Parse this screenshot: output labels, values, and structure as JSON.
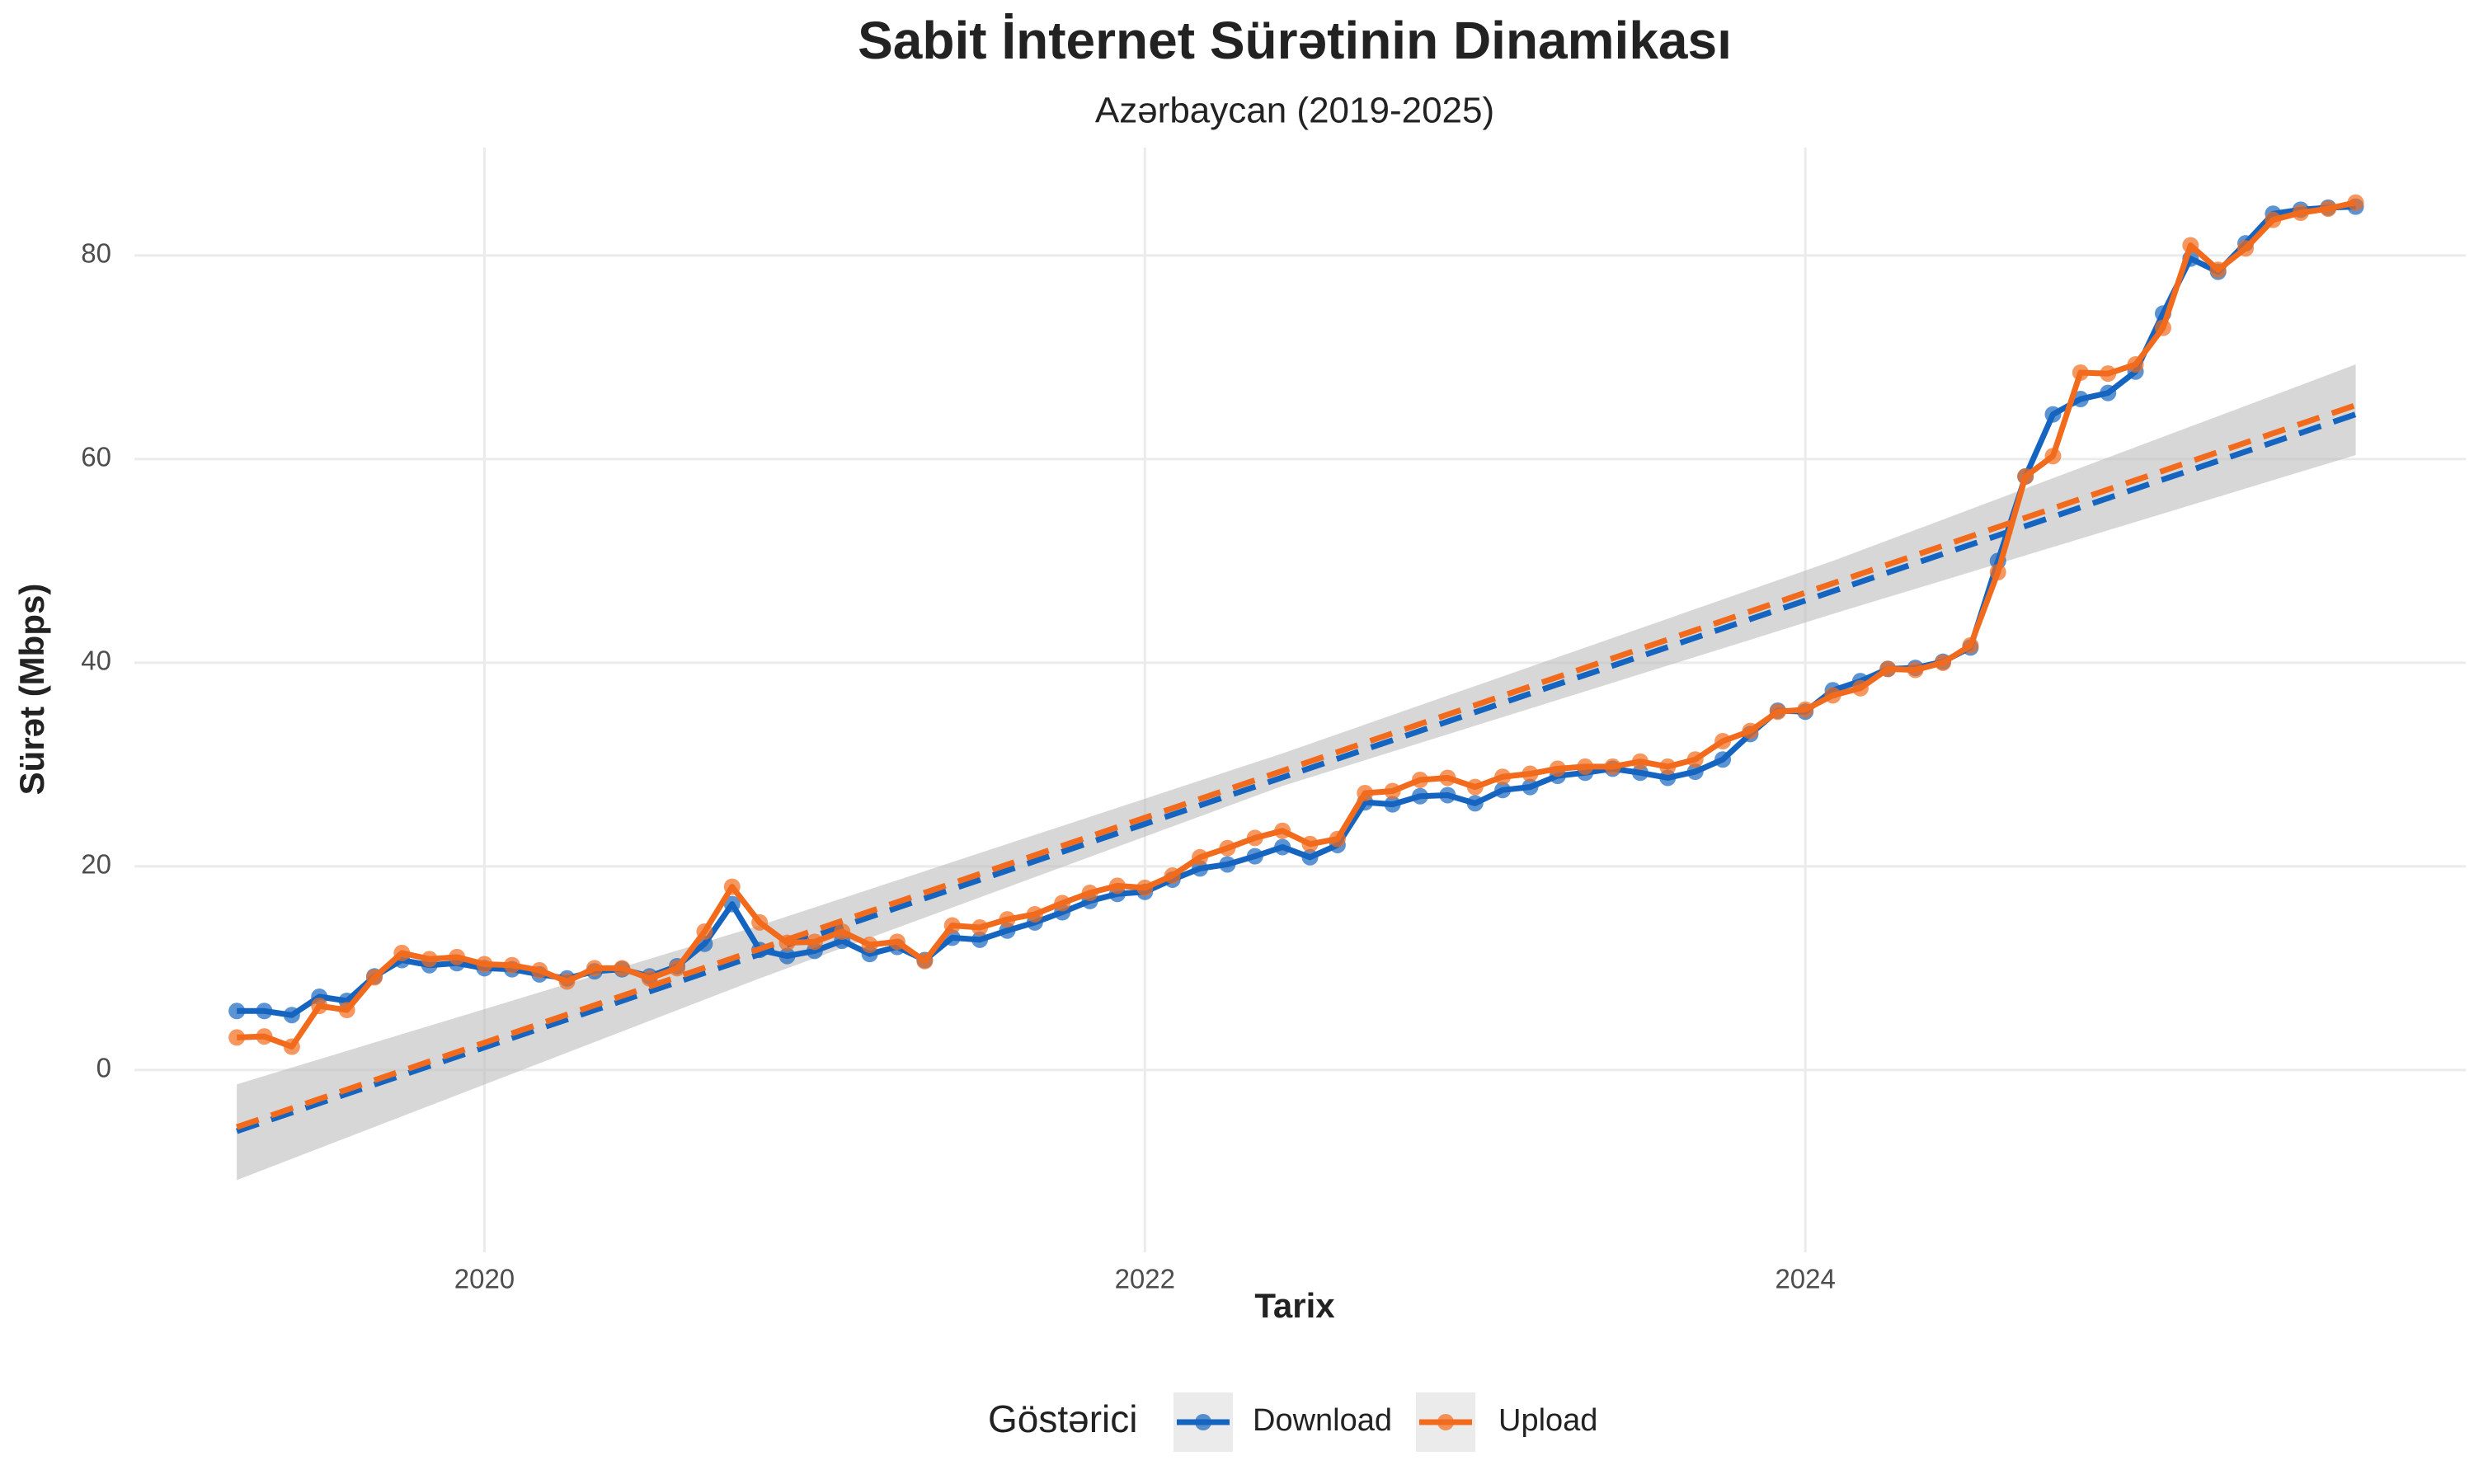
{
  "chart_data": {
    "type": "line",
    "title": "Sabit İnternet Sürətinin Dinamikası",
    "subtitle": "Azərbaycan (2019-2025)",
    "x_label": "Tarix",
    "y_label": "Sürət (Mbps)",
    "legend_title": "Göstərici",
    "legend_position": "bottom",
    "grid": true,
    "x": [
      "2019-04",
      "2019-05",
      "2019-06",
      "2019-07",
      "2019-08",
      "2019-09",
      "2019-10",
      "2019-11",
      "2019-12",
      "2020-01",
      "2020-02",
      "2020-03",
      "2020-04",
      "2020-05",
      "2020-06",
      "2020-07",
      "2020-08",
      "2020-09",
      "2020-10",
      "2020-11",
      "2020-12",
      "2021-01",
      "2021-02",
      "2021-03",
      "2021-04",
      "2021-05",
      "2021-06",
      "2021-07",
      "2021-08",
      "2021-09",
      "2021-10",
      "2021-11",
      "2021-12",
      "2022-01",
      "2022-02",
      "2022-03",
      "2022-04",
      "2022-05",
      "2022-06",
      "2022-07",
      "2022-08",
      "2022-09",
      "2022-10",
      "2022-11",
      "2022-12",
      "2023-01",
      "2023-02",
      "2023-03",
      "2023-04",
      "2023-05",
      "2023-06",
      "2023-07",
      "2023-08",
      "2023-09",
      "2023-10",
      "2023-11",
      "2023-12",
      "2024-01",
      "2024-02",
      "2024-03",
      "2024-04",
      "2024-05",
      "2024-06",
      "2024-07",
      "2024-08",
      "2024-09",
      "2024-10",
      "2024-11",
      "2024-12",
      "2025-01",
      "2025-02",
      "2025-03",
      "2025-04",
      "2025-05",
      "2025-06",
      "2025-07",
      "2025-08",
      "2025-09"
    ],
    "series": [
      {
        "name": "Download",
        "color": "#1565c0",
        "values": [
          5.8,
          5.8,
          5.4,
          7.2,
          6.8,
          9.2,
          10.8,
          10.3,
          10.5,
          10.0,
          9.9,
          9.4,
          9.0,
          9.7,
          9.9,
          9.2,
          10.2,
          12.4,
          16.3,
          11.8,
          11.2,
          11.7,
          12.7,
          11.4,
          12.1,
          10.8,
          13.0,
          12.8,
          13.7,
          14.5,
          15.5,
          16.6,
          17.3,
          17.5,
          18.7,
          19.8,
          20.2,
          21.0,
          21.9,
          20.9,
          22.1,
          26.3,
          26.1,
          26.9,
          27.0,
          26.2,
          27.5,
          27.8,
          28.9,
          29.2,
          29.6,
          29.2,
          28.7,
          29.3,
          30.5,
          33.0,
          35.3,
          35.2,
          37.3,
          38.2,
          39.4,
          39.5,
          40.1,
          41.5,
          50.0,
          58.3,
          64.4,
          65.9,
          66.5,
          68.6,
          74.3,
          79.7,
          78.4,
          81.2,
          84.1,
          84.5,
          84.7,
          84.8
        ],
        "trend": [
          -6.0,
          64.4
        ]
      },
      {
        "name": "Upload",
        "color": "#f26b1d",
        "values": [
          3.2,
          3.3,
          2.3,
          6.3,
          5.9,
          9.1,
          11.5,
          10.9,
          11.1,
          10.4,
          10.3,
          9.8,
          8.7,
          10.0,
          10.0,
          9.0,
          10.0,
          13.6,
          18.0,
          14.5,
          12.5,
          12.6,
          13.6,
          12.3,
          12.6,
          10.7,
          14.2,
          14.0,
          14.8,
          15.3,
          16.4,
          17.4,
          18.1,
          17.9,
          19.1,
          20.9,
          21.8,
          22.8,
          23.5,
          22.2,
          22.7,
          27.2,
          27.4,
          28.5,
          28.7,
          27.8,
          28.8,
          29.1,
          29.6,
          29.8,
          29.8,
          30.3,
          29.8,
          30.5,
          32.3,
          33.3,
          35.2,
          35.4,
          36.8,
          37.5,
          39.4,
          39.3,
          40.0,
          41.7,
          48.9,
          58.3,
          60.3,
          68.5,
          68.4,
          69.3,
          72.9,
          81.0,
          78.6,
          80.7,
          83.5,
          84.2,
          84.6,
          85.2
        ],
        "trend": [
          -5.6,
          65.3
        ]
      }
    ],
    "trend_x": [
      "2019-04",
      "2025-09"
    ],
    "band": {
      "x": [
        "2019-04",
        "2020-11",
        "2022-06",
        "2024-02",
        "2025-09"
      ],
      "lower": [
        -10.8,
        9.0,
        27.9,
        44.8,
        60.4
      ],
      "upper": [
        -1.4,
        14.2,
        31.1,
        50.0,
        69.3
      ],
      "color": "#bdbdbd"
    },
    "xlim": [
      2018.94,
      2026.0
    ],
    "xticks": [
      2020,
      2022,
      2024
    ],
    "ylim": [
      -17.9,
      90.6
    ],
    "yticks": [
      0,
      20,
      40,
      60,
      80
    ]
  }
}
